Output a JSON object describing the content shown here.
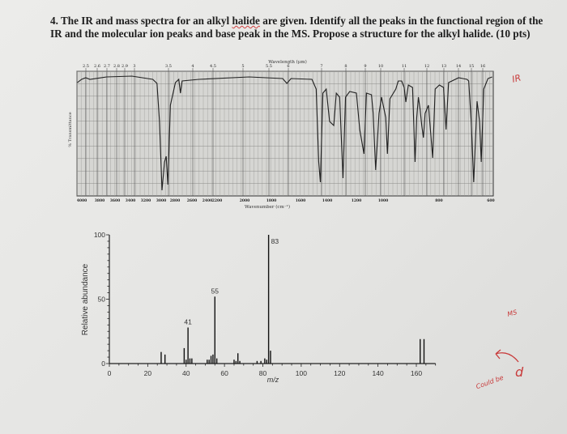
{
  "question": {
    "prefix": "4. The IR and mass spectra for an alkyl ",
    "underlined": "halide",
    "suffix": " are given. Identify all the peaks in the functional region of the IR and the molecular ion peaks and base peak in the MS. Propose a structure for the alkyl halide.  (10 pts)"
  },
  "ir": {
    "top_axis_title": "Wavelength (μm)",
    "top_ticks": [
      "2.5",
      "2.6",
      "2.7",
      "2.8",
      "2.9",
      "3",
      "3.5",
      "4",
      "4.5",
      "5",
      "5.5",
      "6",
      "7",
      "8",
      "9",
      "10",
      "11",
      "12",
      "13",
      "14",
      "15",
      "16"
    ],
    "bottom_ticks": [
      "4000",
      "3800",
      "3600",
      "3400",
      "3200",
      "3000",
      "2800",
      "2600",
      "2400",
      "2200",
      "2000",
      "1800",
      "1600",
      "1400",
      "1200",
      "1000",
      "800",
      "600"
    ],
    "bottom_axis_title": "Wavenumber (cm⁻¹)",
    "ylabel": "% Transmittance"
  },
  "chart_data": {
    "type": "bar",
    "xlabel": "m/z",
    "ylabel": "Relative abundance",
    "xlim": [
      0,
      170
    ],
    "ylim": [
      0,
      100
    ],
    "x_ticks": [
      0,
      20,
      40,
      60,
      80,
      100,
      120,
      140,
      160
    ],
    "y_ticks": [
      0,
      50,
      100
    ],
    "x": [
      27,
      29,
      39,
      40,
      41,
      42,
      43,
      51,
      52,
      53,
      54,
      55,
      56,
      65,
      66,
      67,
      68,
      77,
      79,
      81,
      82,
      83,
      84,
      162,
      164
    ],
    "values": [
      9,
      7,
      12,
      3,
      28,
      4,
      4,
      3,
      3,
      6,
      7,
      52,
      4,
      3,
      2,
      8,
      2,
      2,
      2,
      4,
      3,
      100,
      10,
      19,
      19
    ],
    "peak_labels": [
      {
        "x": 41,
        "label": "41"
      },
      {
        "x": 55,
        "label": "55"
      },
      {
        "x": 83,
        "label": "83"
      }
    ]
  },
  "handwriting": {
    "ir_note": "IR",
    "ms_note": "MS",
    "answer_prefix": "Could be",
    "answer": "d",
    "color": "#c83a3a"
  }
}
